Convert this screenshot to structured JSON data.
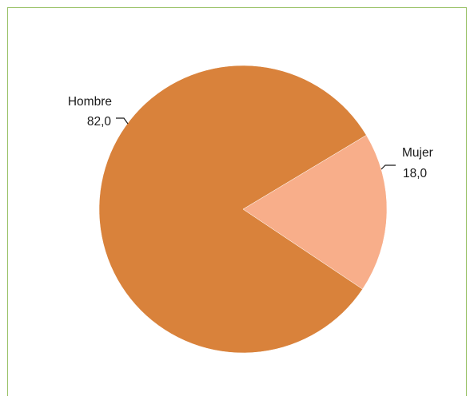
{
  "chart_data": {
    "type": "pie",
    "title": "",
    "slices": [
      {
        "label": "Hombre",
        "value": 82.0,
        "value_label": "82,0",
        "color": "#d9823b"
      },
      {
        "label": "Mujer",
        "value": 18.0,
        "value_label": "18,0",
        "color": "#f8ae8a"
      }
    ],
    "legend": "none",
    "data_labels": "outside-with-leader-lines"
  },
  "colors": {
    "frame_border": "#9cc36b",
    "background": "#ffffff"
  }
}
